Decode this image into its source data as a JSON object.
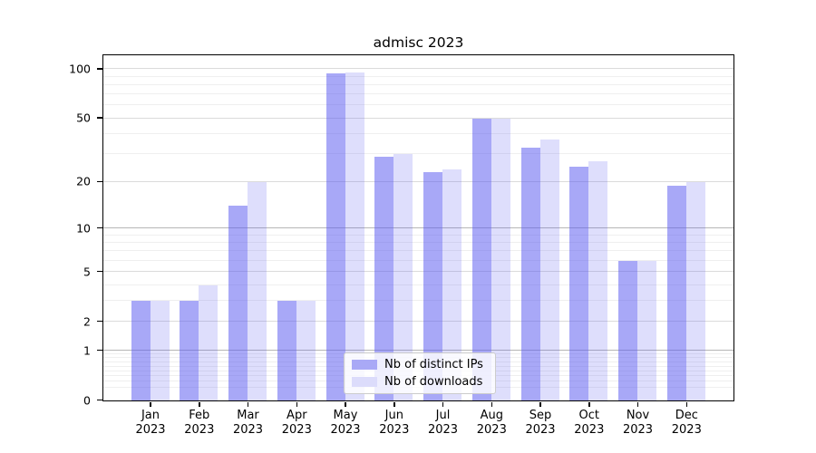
{
  "chart_data": {
    "type": "bar",
    "title": "admisc 2023",
    "categories": [
      "Jan 2023",
      "Feb 2023",
      "Mar 2023",
      "Apr 2023",
      "May 2023",
      "Jun 2023",
      "Jul 2023",
      "Aug 2023",
      "Sep 2023",
      "Oct 2023",
      "Nov 2023",
      "Dec 2023"
    ],
    "series": [
      {
        "name": "Nb of distinct IPs",
        "values": [
          3,
          3,
          14,
          3,
          94,
          29,
          23,
          50,
          33,
          25,
          6,
          19
        ]
      },
      {
        "name": "Nb of downloads",
        "values": [
          3,
          4,
          20,
          3,
          96,
          30,
          24,
          50,
          37,
          27,
          6,
          20
        ]
      }
    ],
    "yscale": "log1p",
    "ylim": [
      0,
      120
    ],
    "yticks": [
      0,
      1,
      2,
      5,
      10,
      20,
      50,
      100
    ],
    "minor_yticks": [
      0.2,
      0.3,
      0.4,
      0.5,
      0.6,
      0.7,
      0.8,
      0.9,
      3,
      4,
      6,
      7,
      8,
      9,
      30,
      40,
      60,
      70,
      80,
      90
    ],
    "decade_yticks": [
      1,
      10
    ],
    "grid": true,
    "legend_position": "lower center"
  },
  "colors": {
    "bar_distinct_ips": "rgba(90,90,240,0.53)",
    "bar_downloads": "rgba(90,90,240,0.20)",
    "legend_swatch_distinct_ips": "#a9a9f6",
    "legend_swatch_downloads": "#dcdcfb",
    "grid_decade": "#b6b6b6",
    "grid_major": "#dbdbdb",
    "grid_minor": "#efefef",
    "axis": "#000000"
  }
}
